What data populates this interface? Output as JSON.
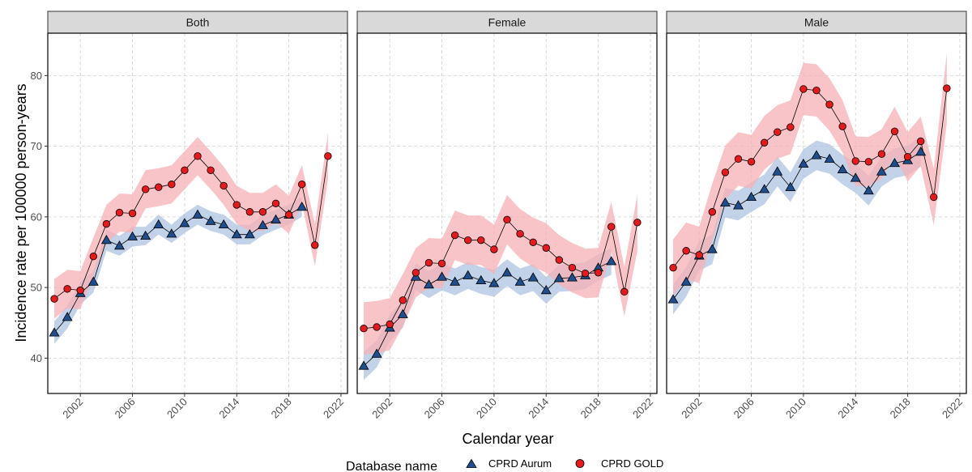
{
  "chart_data": {
    "type": "line",
    "facets": [
      "Both",
      "Female",
      "Male"
    ],
    "xlabel": "Calendar year",
    "ylabel": "Incidence rate per 100000 person-years",
    "xlim": [
      1999.5,
      2022.5
    ],
    "ylim": [
      35,
      86
    ],
    "x_ticks": [
      2002,
      2006,
      2010,
      2014,
      2018,
      2022
    ],
    "y_ticks": [
      40,
      50,
      60,
      70,
      80
    ],
    "grid": true,
    "legend": {
      "title": "Database name",
      "position": "bottom",
      "entries": [
        {
          "label": "CPRD Aurum",
          "marker": "triangle",
          "color": "#1f4e8c"
        },
        {
          "label": "CPRD GOLD",
          "marker": "circle",
          "color": "#e41a1c"
        }
      ]
    },
    "colors": {
      "aurum_marker": "#1f4e8c",
      "aurum_ribbon": "#aec3e0",
      "gold_marker": "#e41a1c",
      "gold_ribbon": "#f7b0b4",
      "line": "#000000"
    },
    "panels": [
      {
        "facet": "Both",
        "series": [
          {
            "name": "CPRD Aurum",
            "x": [
              2000,
              2001,
              2002,
              2003,
              2004,
              2005,
              2006,
              2007,
              2008,
              2009,
              2010,
              2011,
              2012,
              2013,
              2014,
              2015,
              2016,
              2017,
              2018,
              2019
            ],
            "y": [
              43.6,
              45.8,
              49.2,
              50.8,
              56.7,
              55.9,
              57.2,
              57.3,
              58.9,
              57.6,
              59.1,
              60.3,
              59.4,
              58.9,
              57.5,
              57.5,
              58.8,
              59.6,
              60.3,
              61.4
            ],
            "lower": [
              42.0,
              44.2,
              47.6,
              49.3,
              55.2,
              54.5,
              55.8,
              56.0,
              57.5,
              56.3,
              57.7,
              58.9,
              58.0,
              57.5,
              56.1,
              56.1,
              57.4,
              58.2,
              58.9,
              60.0
            ],
            "upper": [
              45.2,
              47.4,
              50.8,
              52.3,
              58.2,
              57.3,
              58.6,
              58.6,
              60.3,
              58.9,
              60.5,
              61.7,
              60.8,
              60.3,
              58.9,
              58.9,
              60.2,
              61.0,
              61.7,
              62.8
            ]
          },
          {
            "name": "CPRD GOLD",
            "x": [
              2000,
              2001,
              2002,
              2003,
              2004,
              2005,
              2006,
              2007,
              2008,
              2009,
              2010,
              2011,
              2012,
              2013,
              2014,
              2015,
              2016,
              2017,
              2018,
              2019,
              2020,
              2021
            ],
            "y": [
              48.4,
              49.8,
              49.6,
              54.4,
              59.0,
              60.6,
              60.5,
              63.9,
              64.2,
              64.6,
              66.6,
              68.6,
              66.6,
              64.4,
              61.7,
              60.7,
              60.7,
              61.9,
              60.3,
              64.6,
              56.0,
              68.6
            ],
            "lower": [
              45.6,
              47.1,
              46.9,
              51.7,
              56.3,
              57.9,
              57.8,
              61.2,
              61.5,
              61.9,
              63.9,
              65.9,
              63.9,
              61.7,
              59.0,
              58.0,
              58.0,
              59.2,
              57.6,
              61.9,
              53.0,
              65.3
            ],
            "upper": [
              51.2,
              52.5,
              52.3,
              57.1,
              61.7,
              63.3,
              63.2,
              66.6,
              66.9,
              67.3,
              69.3,
              71.3,
              69.3,
              67.1,
              64.4,
              63.4,
              63.4,
              64.6,
              63.0,
              67.3,
              59.0,
              71.9
            ]
          }
        ]
      },
      {
        "facet": "Female",
        "series": [
          {
            "name": "CPRD Aurum",
            "x": [
              2000,
              2001,
              2002,
              2003,
              2004,
              2005,
              2006,
              2007,
              2008,
              2009,
              2010,
              2011,
              2012,
              2013,
              2014,
              2015,
              2016,
              2017,
              2018,
              2019
            ],
            "y": [
              38.9,
              40.6,
              44.3,
              46.2,
              51.5,
              50.4,
              51.5,
              50.8,
              51.7,
              51.0,
              50.6,
              52.1,
              50.8,
              51.4,
              49.6,
              51.3,
              51.4,
              51.7,
              52.8,
              53.7
            ],
            "lower": [
              36.9,
              38.7,
              42.4,
              44.3,
              49.6,
              48.5,
              49.6,
              48.9,
              49.8,
              49.1,
              48.7,
              50.2,
              48.9,
              49.5,
              47.7,
              49.4,
              49.5,
              49.8,
              50.9,
              51.8
            ],
            "upper": [
              40.9,
              42.5,
              46.2,
              48.1,
              53.4,
              52.3,
              53.4,
              52.7,
              53.6,
              52.9,
              52.5,
              54.0,
              52.7,
              53.3,
              51.5,
              53.2,
              53.3,
              53.6,
              54.7,
              55.6
            ]
          },
          {
            "name": "CPRD GOLD",
            "x": [
              2000,
              2001,
              2002,
              2003,
              2004,
              2005,
              2006,
              2007,
              2008,
              2009,
              2010,
              2011,
              2012,
              2013,
              2014,
              2015,
              2016,
              2017,
              2018,
              2019,
              2020,
              2021
            ],
            "y": [
              44.2,
              44.4,
              44.8,
              48.2,
              52.1,
              53.5,
              53.4,
              57.4,
              56.7,
              56.7,
              55.4,
              59.6,
              57.6,
              56.4,
              55.6,
              53.9,
              52.8,
              52.0,
              52.1,
              58.6,
              49.4,
              59.2
            ],
            "lower": [
              40.5,
              40.7,
              41.1,
              44.5,
              48.6,
              50.0,
              49.9,
              53.9,
              53.2,
              53.2,
              51.9,
              56.1,
              54.1,
              52.9,
              52.1,
              50.4,
              49.3,
              48.5,
              48.6,
              55.1,
              45.9,
              55.2
            ],
            "upper": [
              47.9,
              48.1,
              48.5,
              51.9,
              55.6,
              57.0,
              56.9,
              60.9,
              60.2,
              60.2,
              58.9,
              63.1,
              61.1,
              59.9,
              59.1,
              57.4,
              56.3,
              55.5,
              55.6,
              62.1,
              52.9,
              63.2
            ]
          }
        ]
      },
      {
        "facet": "Male",
        "series": [
          {
            "name": "CPRD Aurum",
            "x": [
              2000,
              2001,
              2002,
              2003,
              2004,
              2005,
              2006,
              2007,
              2008,
              2009,
              2010,
              2011,
              2012,
              2013,
              2014,
              2015,
              2016,
              2017,
              2018,
              2019
            ],
            "y": [
              48.3,
              50.8,
              54.5,
              55.4,
              62.0,
              61.6,
              62.8,
              63.9,
              66.4,
              64.2,
              67.5,
              68.7,
              68.2,
              66.7,
              65.5,
              63.7,
              66.4,
              67.6,
              68.0,
              69.2
            ],
            "lower": [
              46.2,
              48.7,
              52.4,
              53.3,
              59.9,
              59.5,
              60.7,
              61.8,
              64.3,
              62.1,
              65.4,
              66.6,
              66.1,
              64.6,
              63.4,
              61.6,
              64.3,
              65.5,
              65.9,
              67.1
            ],
            "upper": [
              50.4,
              52.9,
              56.6,
              57.5,
              64.1,
              63.7,
              64.9,
              66.0,
              68.5,
              66.3,
              69.6,
              70.8,
              70.3,
              68.8,
              67.6,
              65.8,
              68.5,
              69.7,
              70.1,
              71.3
            ]
          },
          {
            "name": "CPRD GOLD",
            "x": [
              2000,
              2001,
              2002,
              2003,
              2004,
              2005,
              2006,
              2007,
              2008,
              2009,
              2010,
              2011,
              2012,
              2013,
              2014,
              2015,
              2016,
              2017,
              2018,
              2019,
              2020,
              2021
            ],
            "y": [
              52.8,
              55.2,
              54.6,
              60.7,
              66.3,
              68.2,
              67.8,
              70.5,
              72.0,
              72.7,
              78.1,
              77.9,
              75.9,
              72.8,
              67.9,
              67.8,
              68.9,
              72.1,
              68.5,
              70.7,
              62.8,
              78.2
            ],
            "lower": [
              48.8,
              51.2,
              50.6,
              56.7,
              62.5,
              64.4,
              64.0,
              66.7,
              68.2,
              68.9,
              74.4,
              74.2,
              72.2,
              69.1,
              64.4,
              64.3,
              65.4,
              68.6,
              65.0,
              67.2,
              58.8,
              73.2
            ],
            "upper": [
              56.8,
              59.2,
              58.6,
              64.7,
              70.1,
              72.0,
              71.6,
              74.3,
              75.8,
              76.5,
              81.8,
              81.6,
              79.6,
              76.5,
              71.4,
              71.3,
              72.4,
              75.6,
              72.0,
              74.2,
              66.8,
              83.2
            ]
          }
        ]
      }
    ]
  }
}
